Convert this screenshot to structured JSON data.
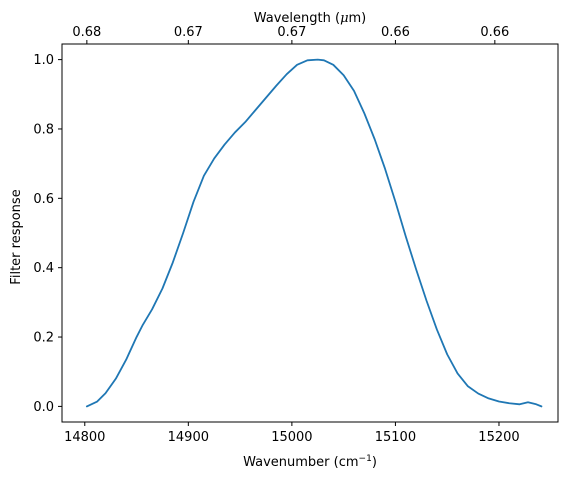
{
  "chart_data": {
    "type": "line",
    "xlabel": "Wavenumber (cm",
    "xlabel_sup": "−1",
    "xlabel_suffix": ")",
    "ylabel": "Filter response",
    "top_xlabel": "Wavelength (",
    "top_xlabel_mu": "μ",
    "top_xlabel_suffix": "m)",
    "xlim": [
      14778,
      15257
    ],
    "ylim": [
      -0.045,
      1.045
    ],
    "x_ticks": [
      14800,
      14900,
      15000,
      15100,
      15200
    ],
    "x_tick_labels": [
      "14800",
      "14900",
      "15000",
      "15100",
      "15200"
    ],
    "y_ticks": [
      0.0,
      0.2,
      0.4,
      0.6,
      0.8,
      1.0
    ],
    "y_tick_labels": [
      "0.0",
      "0.2",
      "0.4",
      "0.6",
      "0.8",
      "1.0"
    ],
    "top_ticks": [
      14802,
      14900,
      15000,
      15100,
      15196
    ],
    "top_tick_labels": [
      "0.68",
      "0.67",
      "0.67",
      "0.66",
      "0.66"
    ],
    "grid": false,
    "line_color": "#1f77b4",
    "series": [
      {
        "x": [
          14802,
          14812,
          14820,
          14830,
          14840,
          14850,
          14856,
          14865,
          14875,
          14885,
          14895,
          14905,
          14915,
          14925,
          14935,
          14945,
          14955,
          14965,
          14975,
          14985,
          14995,
          15005,
          15015,
          15025,
          15031,
          15040,
          15050,
          15060,
          15070,
          15080,
          15090,
          15100,
          15110,
          15120,
          15130,
          15140,
          15150,
          15160,
          15170,
          15180,
          15190,
          15200,
          15210,
          15220,
          15228,
          15236,
          15241
        ],
        "y": [
          0.0,
          0.014,
          0.038,
          0.08,
          0.135,
          0.2,
          0.235,
          0.28,
          0.34,
          0.415,
          0.5,
          0.59,
          0.665,
          0.715,
          0.755,
          0.79,
          0.82,
          0.855,
          0.89,
          0.925,
          0.958,
          0.985,
          0.998,
          1.0,
          0.998,
          0.985,
          0.955,
          0.91,
          0.845,
          0.77,
          0.685,
          0.59,
          0.49,
          0.395,
          0.305,
          0.222,
          0.15,
          0.095,
          0.058,
          0.037,
          0.023,
          0.014,
          0.009,
          0.006,
          0.012,
          0.006,
          0.0
        ]
      }
    ]
  }
}
